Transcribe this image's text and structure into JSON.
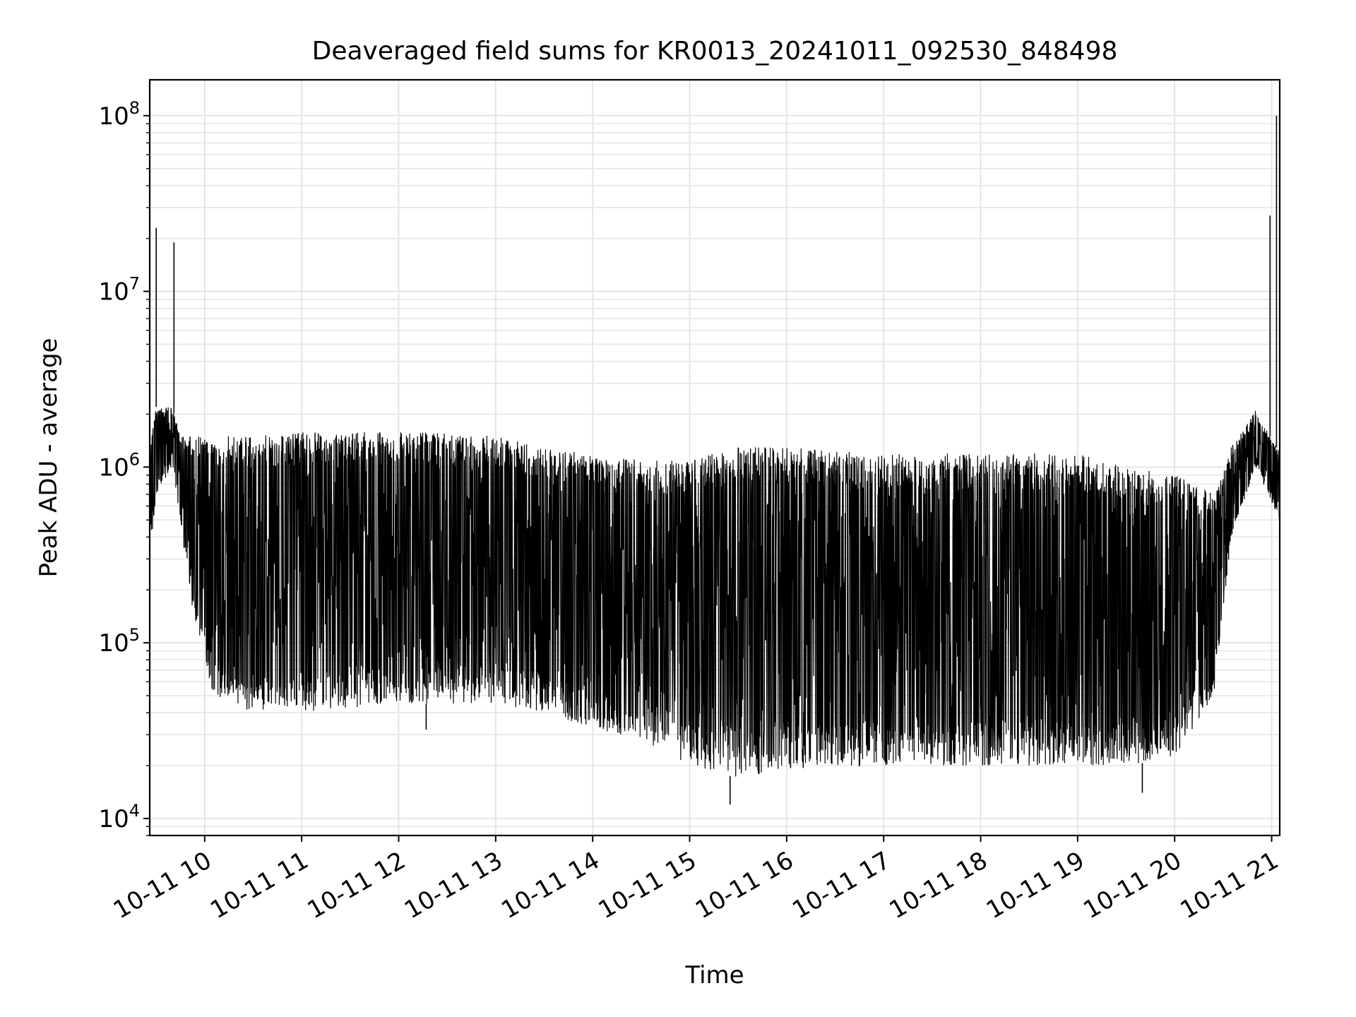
{
  "chart_data": {
    "type": "line",
    "title": "Deaveraged field sums for KR0013_20241011_092530_848498",
    "xlabel": "Time",
    "ylabel": "Peak ADU - average",
    "yscale": "log",
    "ylim": [
      8000,
      160000000
    ],
    "xlim": [
      "2024-10-11 09:26",
      "2024-10-11 21:05"
    ],
    "x_ticks": [
      {
        "t": "2024-10-11 10:00",
        "label": "10-11 10"
      },
      {
        "t": "2024-10-11 11:00",
        "label": "10-11 11"
      },
      {
        "t": "2024-10-11 12:00",
        "label": "10-11 12"
      },
      {
        "t": "2024-10-11 13:00",
        "label": "10-11 13"
      },
      {
        "t": "2024-10-11 14:00",
        "label": "10-11 14"
      },
      {
        "t": "2024-10-11 15:00",
        "label": "10-11 15"
      },
      {
        "t": "2024-10-11 16:00",
        "label": "10-11 16"
      },
      {
        "t": "2024-10-11 17:00",
        "label": "10-11 17"
      },
      {
        "t": "2024-10-11 18:00",
        "label": "10-11 18"
      },
      {
        "t": "2024-10-11 19:00",
        "label": "10-11 19"
      },
      {
        "t": "2024-10-11 20:00",
        "label": "10-11 20"
      },
      {
        "t": "2024-10-11 21:00",
        "label": "10-11 21"
      }
    ],
    "y_ticks": [
      {
        "value": 10000,
        "base": "10",
        "exp": "4"
      },
      {
        "value": 100000,
        "base": "10",
        "exp": "5"
      },
      {
        "value": 1000000,
        "base": "10",
        "exp": "6"
      },
      {
        "value": 10000000,
        "base": "10",
        "exp": "7"
      },
      {
        "value": 100000000,
        "base": "10",
        "exp": "8"
      }
    ],
    "grid": true,
    "line_color": "#000000",
    "grid_color": "#e5e5e5",
    "envelope": [
      {
        "t": "2024-10-11 09:26",
        "low": 300000,
        "high": 1300000
      },
      {
        "t": "2024-10-11 09:30",
        "low": 700000,
        "high": 2200000
      },
      {
        "t": "2024-10-11 09:40",
        "low": 1000000,
        "high": 2200000
      },
      {
        "t": "2024-10-11 09:45",
        "low": 500000,
        "high": 1500000
      },
      {
        "t": "2024-10-11 09:50",
        "low": 200000,
        "high": 1500000
      },
      {
        "t": "2024-10-11 10:05",
        "low": 50000,
        "high": 1500000
      },
      {
        "t": "2024-10-11 10:30",
        "low": 40000,
        "high": 1500000
      },
      {
        "t": "2024-10-11 11:00",
        "low": 40000,
        "high": 1600000
      },
      {
        "t": "2024-10-11 12:00",
        "low": 45000,
        "high": 1600000
      },
      {
        "t": "2024-10-11 13:00",
        "low": 45000,
        "high": 1500000
      },
      {
        "t": "2024-10-11 13:30",
        "low": 40000,
        "high": 1300000
      },
      {
        "t": "2024-10-11 14:00",
        "low": 32000,
        "high": 1200000
      },
      {
        "t": "2024-10-11 14:30",
        "low": 28000,
        "high": 1100000
      },
      {
        "t": "2024-10-11 15:00",
        "low": 20000,
        "high": 1100000
      },
      {
        "t": "2024-10-11 15:30",
        "low": 17000,
        "high": 1300000
      },
      {
        "t": "2024-10-11 16:00",
        "low": 19000,
        "high": 1300000
      },
      {
        "t": "2024-10-11 17:00",
        "low": 20000,
        "high": 1200000
      },
      {
        "t": "2024-10-11 18:00",
        "low": 20000,
        "high": 1200000
      },
      {
        "t": "2024-10-11 19:00",
        "low": 20000,
        "high": 1200000
      },
      {
        "t": "2024-10-11 19:30",
        "low": 20000,
        "high": 1000000
      },
      {
        "t": "2024-10-11 20:00",
        "low": 22000,
        "high": 900000
      },
      {
        "t": "2024-10-11 20:25",
        "low": 50000,
        "high": 700000
      },
      {
        "t": "2024-10-11 20:35",
        "low": 400000,
        "high": 1300000
      },
      {
        "t": "2024-10-11 20:50",
        "low": 1000000,
        "high": 2100000
      },
      {
        "t": "2024-10-11 21:05",
        "low": 500000,
        "high": 1200000
      }
    ],
    "spikes": [
      {
        "t": "2024-10-11 09:30",
        "value": 23000000
      },
      {
        "t": "2024-10-11 09:41",
        "value": 19000000
      },
      {
        "t": "2024-10-11 12:17",
        "value": 32000
      },
      {
        "t": "2024-10-11 15:25",
        "value": 12000
      },
      {
        "t": "2024-10-11 19:40",
        "value": 14000
      },
      {
        "t": "2024-10-11 20:59",
        "value": 27000000
      },
      {
        "t": "2024-10-11 21:03",
        "value": 100000000
      }
    ]
  }
}
